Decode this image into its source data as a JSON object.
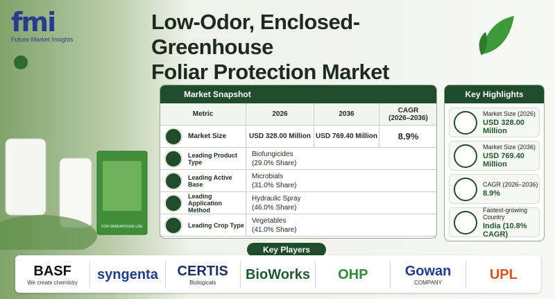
{
  "header": {
    "logo": "fmi",
    "logo_subtitle": "Future Market Insights",
    "title_lines": [
      "Low-Odor, Enclosed-Greenhouse",
      "Foliar Protection Market"
    ]
  },
  "product_label": "FOR GREENHOUSE USE",
  "snapshot": {
    "title": "Market Snapshot",
    "columns": [
      "Metric",
      "2026",
      "2036",
      "CAGR (2026–2036)"
    ],
    "market_size": {
      "metric": "Market Size",
      "v2026": "USD 328.00 Million",
      "v2036": "USD 769.40 Million",
      "cagr": "8.9%"
    },
    "rows": [
      {
        "metric": "Leading Product Type",
        "value": "Biofungicides",
        "share": "(29.0% Share)"
      },
      {
        "metric": "Leading Active Base",
        "value": "Microbials",
        "share": "(31.0% Share)"
      },
      {
        "metric": "Leading Application Method",
        "value": "Hydraulic Spray",
        "share": "(46.0% Share)"
      },
      {
        "metric": "Leading Crop Type",
        "value": "Vegetables",
        "share": "(41.0% Share)"
      }
    ]
  },
  "highlights": {
    "title": "Key Highlights",
    "items": [
      {
        "label": "Market Size (2026)",
        "value": "USD 328.00 Million"
      },
      {
        "label": "Market Size (2036)",
        "value": "USD 769.40 Million"
      },
      {
        "label": "CAGR (2026–2036)",
        "value": "8.9%"
      },
      {
        "label": "Fastest-growing Country",
        "value": "India (10.8% CAGR)"
      }
    ]
  },
  "players": {
    "title": "Key Players",
    "items": [
      {
        "name": "BASF",
        "tagline": "We create chemistry"
      },
      {
        "name": "syngenta"
      },
      {
        "name": "CERTIS",
        "tagline": "Biologicals"
      },
      {
        "name": "BioWorks"
      },
      {
        "name": "OHP"
      },
      {
        "name": "Gowan",
        "tagline": "COMPANY"
      },
      {
        "name": "UPL"
      }
    ]
  }
}
